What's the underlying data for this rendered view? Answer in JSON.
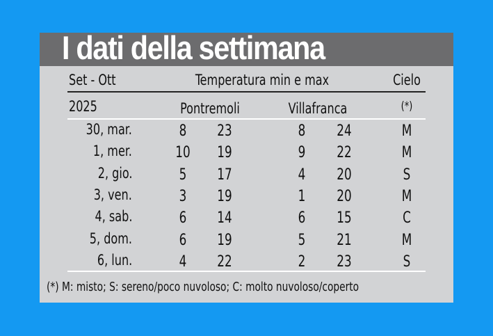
{
  "title": "I dati della settimana",
  "header": {
    "period": "Set - Ott",
    "temperature": "Temperatura min e max",
    "sky": "Cielo"
  },
  "subheader": {
    "year": "2025",
    "city1": "Pontremoli",
    "city2": "Villafranca",
    "sky_note": "(*)"
  },
  "rows": [
    {
      "day": "30, mar.",
      "p_min": "8",
      "p_max": "23",
      "v_min": "8",
      "v_max": "24",
      "sky": "M"
    },
    {
      "day": "1, mer.",
      "p_min": "10",
      "p_max": "19",
      "v_min": "9",
      "v_max": "22",
      "sky": "M"
    },
    {
      "day": "2, gio.",
      "p_min": "5",
      "p_max": "17",
      "v_min": "4",
      "v_max": "20",
      "sky": "S"
    },
    {
      "day": "3, ven.",
      "p_min": "3",
      "p_max": "19",
      "v_min": "1",
      "v_max": "20",
      "sky": "M"
    },
    {
      "day": "4, sab.",
      "p_min": "6",
      "p_max": "14",
      "v_min": "6",
      "v_max": "15",
      "sky": "C"
    },
    {
      "day": "5, dom.",
      "p_min": "6",
      "p_max": "19",
      "v_min": "5",
      "v_max": "21",
      "sky": "M"
    },
    {
      "day": "6, lun.",
      "p_min": "4",
      "p_max": "22",
      "v_min": "2",
      "v_max": "23",
      "sky": "S"
    }
  ],
  "footnote": "(*) M: misto; S: sereno/poco nuvoloso; C: molto nuvoloso/coperto",
  "colors": {
    "background": "#1499f2",
    "panel": "#d2d3d5",
    "title_bar": "#6c6c6e"
  }
}
